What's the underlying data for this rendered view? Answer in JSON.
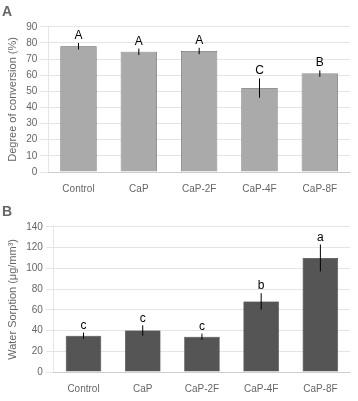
{
  "chart_data": [
    {
      "type": "bar",
      "title": "A",
      "categories": [
        "Control",
        "CaP",
        "CaP-2F",
        "CaP-4F",
        "CaP-8F"
      ],
      "values": [
        78,
        74.5,
        75,
        52,
        61
      ],
      "errors": [
        2,
        2,
        2,
        6,
        2
      ],
      "color": "#aaaaaa",
      "ylabel": "Degree of conversion (%)",
      "ylim": [
        0,
        90
      ],
      "yticks": [
        0,
        10,
        20,
        30,
        40,
        50,
        60,
        70,
        80,
        90
      ],
      "grid": true,
      "annotations": [
        {
          "text": "A",
          "x": "Control",
          "y": 81
        },
        {
          "text": "A",
          "x": "CaP",
          "y": 77
        },
        {
          "text": "A",
          "x": "CaP-2F",
          "y": 77.5
        },
        {
          "text": "C",
          "x": "CaP-4F",
          "y": 59
        },
        {
          "text": "B",
          "x": "CaP-8F",
          "y": 64
        }
      ]
    },
    {
      "type": "bar",
      "title": "B",
      "categories": [
        "Control",
        "CaP",
        "CaP-2F",
        "CaP-4F",
        "CaP-8F"
      ],
      "values": [
        35,
        40,
        34,
        68,
        110
      ],
      "errors": [
        3,
        5,
        3,
        8,
        13
      ],
      "color": "#555555",
      "ylabel": "Water Sorption (μg/mm³)",
      "ylim": [
        0,
        140
      ],
      "yticks": [
        0,
        20,
        40,
        60,
        80,
        100,
        120,
        140
      ],
      "grid": true,
      "annotations": [
        {
          "text": "c",
          "x": "Control",
          "y": 39
        },
        {
          "text": "c",
          "x": "CaP",
          "y": 46
        },
        {
          "text": "c",
          "x": "CaP-2F",
          "y": 38
        },
        {
          "text": "b",
          "x": "CaP-4F",
          "y": 77
        },
        {
          "text": "a",
          "x": "CaP-8F",
          "y": 124
        }
      ]
    }
  ]
}
